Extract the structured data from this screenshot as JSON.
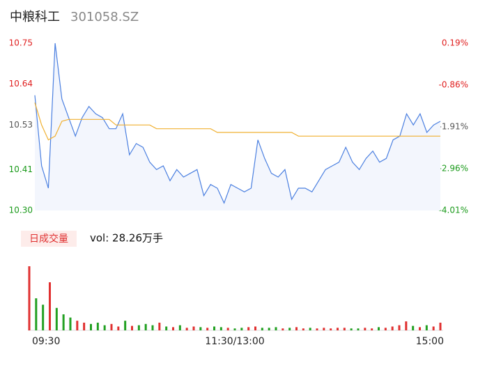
{
  "header": {
    "name": "中粮科工",
    "code": "301058.SZ"
  },
  "chart_data": [
    {
      "type": "line",
      "ylim": [
        10.3,
        10.75
      ],
      "yticks": [
        {
          "value": 10.75,
          "label": "10.75"
        },
        {
          "value": 10.64,
          "label": "10.64"
        },
        {
          "value": 10.53,
          "label": "10.53"
        },
        {
          "value": 10.41,
          "label": "10.41"
        },
        {
          "value": 10.3,
          "label": "10.30"
        }
      ],
      "ytick_colors": [
        "#e02020",
        "#e02020",
        "#555555",
        "#1a9a1a",
        "#1a9a1a"
      ],
      "y2lim": [
        -4.01,
        0.19
      ],
      "y2ticks": [
        {
          "value": 0.19,
          "label": "0.19%"
        },
        {
          "value": -0.86,
          "label": "-0.86%"
        },
        {
          "value": -1.91,
          "label": "-1.91%"
        },
        {
          "value": -2.96,
          "label": "-2.96%"
        },
        {
          "value": -4.01,
          "label": "-4.01%"
        }
      ],
      "series": [
        {
          "color": "#4a7fe0",
          "values": [
            10.61,
            10.42,
            10.36,
            10.75,
            10.6,
            10.55,
            10.5,
            10.55,
            10.58,
            10.56,
            10.55,
            10.52,
            10.52,
            10.56,
            10.45,
            10.48,
            10.47,
            10.43,
            10.41,
            10.42,
            10.38,
            10.41,
            10.39,
            10.4,
            10.41,
            10.34,
            10.37,
            10.36,
            10.32,
            10.37,
            10.36,
            10.35,
            10.36,
            10.49,
            10.44,
            10.4,
            10.39,
            10.41,
            10.33,
            10.36,
            10.36,
            10.35,
            10.38,
            10.41,
            10.42,
            10.43,
            10.47,
            10.43,
            10.41,
            10.44,
            10.46,
            10.43,
            10.44,
            10.49,
            10.5,
            10.56,
            10.53,
            10.56,
            10.51,
            10.53,
            10.54
          ]
        },
        {
          "color": "#f0b030",
          "values": [
            10.59,
            10.53,
            10.49,
            10.5,
            10.54,
            10.545,
            10.545,
            10.545,
            10.545,
            10.545,
            10.545,
            10.545,
            10.53,
            10.53,
            10.53,
            10.53,
            10.53,
            10.53,
            10.52,
            10.52,
            10.52,
            10.52,
            10.52,
            10.52,
            10.52,
            10.52,
            10.52,
            10.51,
            10.51,
            10.51,
            10.51,
            10.51,
            10.51,
            10.51,
            10.51,
            10.51,
            10.51,
            10.51,
            10.51,
            10.5,
            10.5,
            10.5,
            10.5,
            10.5,
            10.5,
            10.5,
            10.5,
            10.5,
            10.5,
            10.5,
            10.5,
            10.5,
            10.5,
            10.5,
            10.5,
            10.5,
            10.5,
            10.5,
            10.5,
            10.5,
            10.5
          ]
        }
      ]
    },
    {
      "type": "bar",
      "label": "日成交量",
      "volume_text": "vol: 28.26万手",
      "categories": [
        "09:30",
        null,
        null,
        null,
        null,
        null,
        null,
        null,
        null,
        null,
        null,
        null,
        null,
        null,
        null,
        null,
        null,
        null,
        null,
        null,
        null,
        null,
        null,
        null,
        null,
        null,
        null,
        null,
        null,
        null,
        "11:30/13:00",
        null,
        null,
        null,
        null,
        null,
        null,
        null,
        null,
        null,
        null,
        null,
        null,
        null,
        null,
        null,
        null,
        null,
        null,
        null,
        null,
        null,
        null,
        null,
        null,
        null,
        null,
        null,
        null,
        null,
        "15:00"
      ],
      "up_color": "#e03030",
      "down_color": "#22a022",
      "values": [
        100,
        50,
        40,
        75,
        35,
        25,
        20,
        15,
        12,
        10,
        12,
        8,
        10,
        6,
        15,
        7,
        8,
        10,
        8,
        12,
        6,
        5,
        8,
        4,
        6,
        5,
        4,
        6,
        5,
        4,
        3,
        4,
        5,
        6,
        4,
        4,
        5,
        3,
        4,
        5,
        3,
        4,
        3,
        4,
        3,
        4,
        4,
        3,
        3,
        4,
        3,
        5,
        4,
        6,
        8,
        14,
        7,
        5,
        8,
        6,
        12
      ]
    }
  ]
}
